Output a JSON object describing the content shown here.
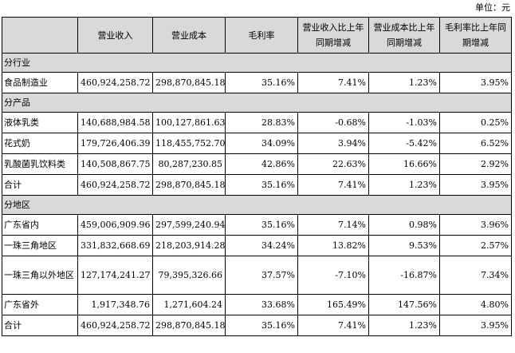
{
  "unit_label": "单位：元",
  "headers": [
    "",
    "营业收入",
    "营业成本",
    "毛利率",
    "营业收入比上年同期增减",
    "营业成本比上年同期增减",
    "毛利率比上年同期增减"
  ],
  "sections": [
    {
      "title": "分行业",
      "rows": [
        {
          "label": "食品制造业",
          "values": [
            "460,924,258.72",
            "298,870,845.18",
            "35.16%",
            "7.41%",
            "1.23%",
            "3.95%"
          ]
        }
      ]
    },
    {
      "title": "分产品",
      "rows": [
        {
          "label": "液体乳类",
          "values": [
            "140,688,984.58",
            "100,127,861.63",
            "28.83%",
            "-0.68%",
            "-1.03%",
            "0.25%"
          ]
        },
        {
          "label": "花式奶",
          "values": [
            "179,726,406.39",
            "118,455,752.70",
            "34.09%",
            "3.94%",
            "-5.42%",
            "6.52%"
          ]
        },
        {
          "label": "乳酸菌乳饮料类",
          "values": [
            "140,508,867.75",
            "80,287,230.85",
            "42.86%",
            "22.63%",
            "16.66%",
            "2.92%"
          ]
        },
        {
          "label": "合计",
          "values": [
            "460,924,258.72",
            "298,870,845.18",
            "35.16%",
            "7.41%",
            "1.23%",
            "3.95%"
          ]
        }
      ]
    },
    {
      "title": "分地区",
      "rows": [
        {
          "label": "广东省内",
          "values": [
            "459,006,909.96",
            "297,599,240.94",
            "35.16%",
            "7.14%",
            "0.98%",
            "3.96%"
          ]
        },
        {
          "label": "一珠三角地区",
          "values": [
            "331,832,668.69",
            "218,203,914.28",
            "34.24%",
            "13.82%",
            "9.53%",
            "2.57%"
          ]
        },
        {
          "label": "一珠三角以外地区",
          "tall": true,
          "values": [
            "127,174,241.27",
            "79,395,326.66",
            "37.57%",
            "-7.10%",
            "-16.87%",
            "7.34%"
          ]
        },
        {
          "label": "广东省外",
          "values": [
            "1,917,348.76",
            "1,271,604.24",
            "33.68%",
            "165.49%",
            "147.56%",
            "4.80%"
          ]
        },
        {
          "label": "合计",
          "values": [
            "460,924,258.72",
            "298,870,845.18",
            "35.16%",
            "7.41%",
            "1.23%",
            "3.95%"
          ]
        }
      ]
    }
  ]
}
